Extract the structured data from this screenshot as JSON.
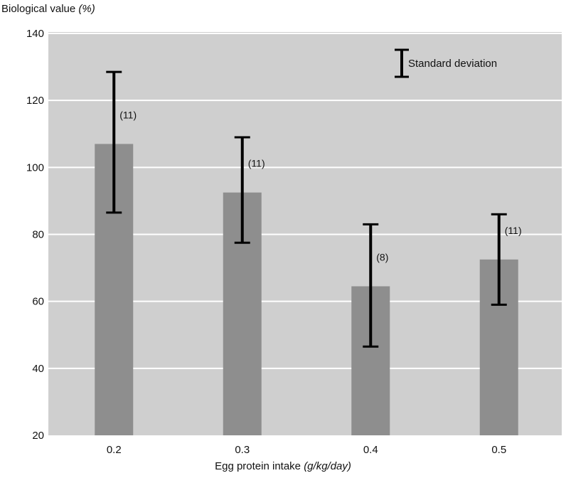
{
  "chart_data": {
    "type": "bar",
    "ylabel": "Biological value",
    "ylabel_unit": "(%)",
    "xlabel": "Egg protein intake",
    "xlabel_unit": "(g/kg/day)",
    "categories": [
      "0.2",
      "0.3",
      "0.4",
      "0.5"
    ],
    "values": [
      107,
      92.5,
      64.5,
      72.5
    ],
    "error_low": [
      86.5,
      77.5,
      46.5,
      59
    ],
    "error_high": [
      128.5,
      109,
      83,
      86
    ],
    "n_labels": [
      "(11)",
      "(11)",
      "(8)",
      "(11)"
    ],
    "ylim": [
      20,
      140
    ],
    "yticks": [
      "20",
      "40",
      "60",
      "80",
      "100",
      "120",
      "140"
    ],
    "grid": true,
    "legend": {
      "label": "Standard deviation",
      "position": "top-right"
    },
    "colors": {
      "plot_bg": "#cfcfcf",
      "bar": "#8e8e8e",
      "grid": "#ffffff",
      "error": "#000000"
    }
  }
}
